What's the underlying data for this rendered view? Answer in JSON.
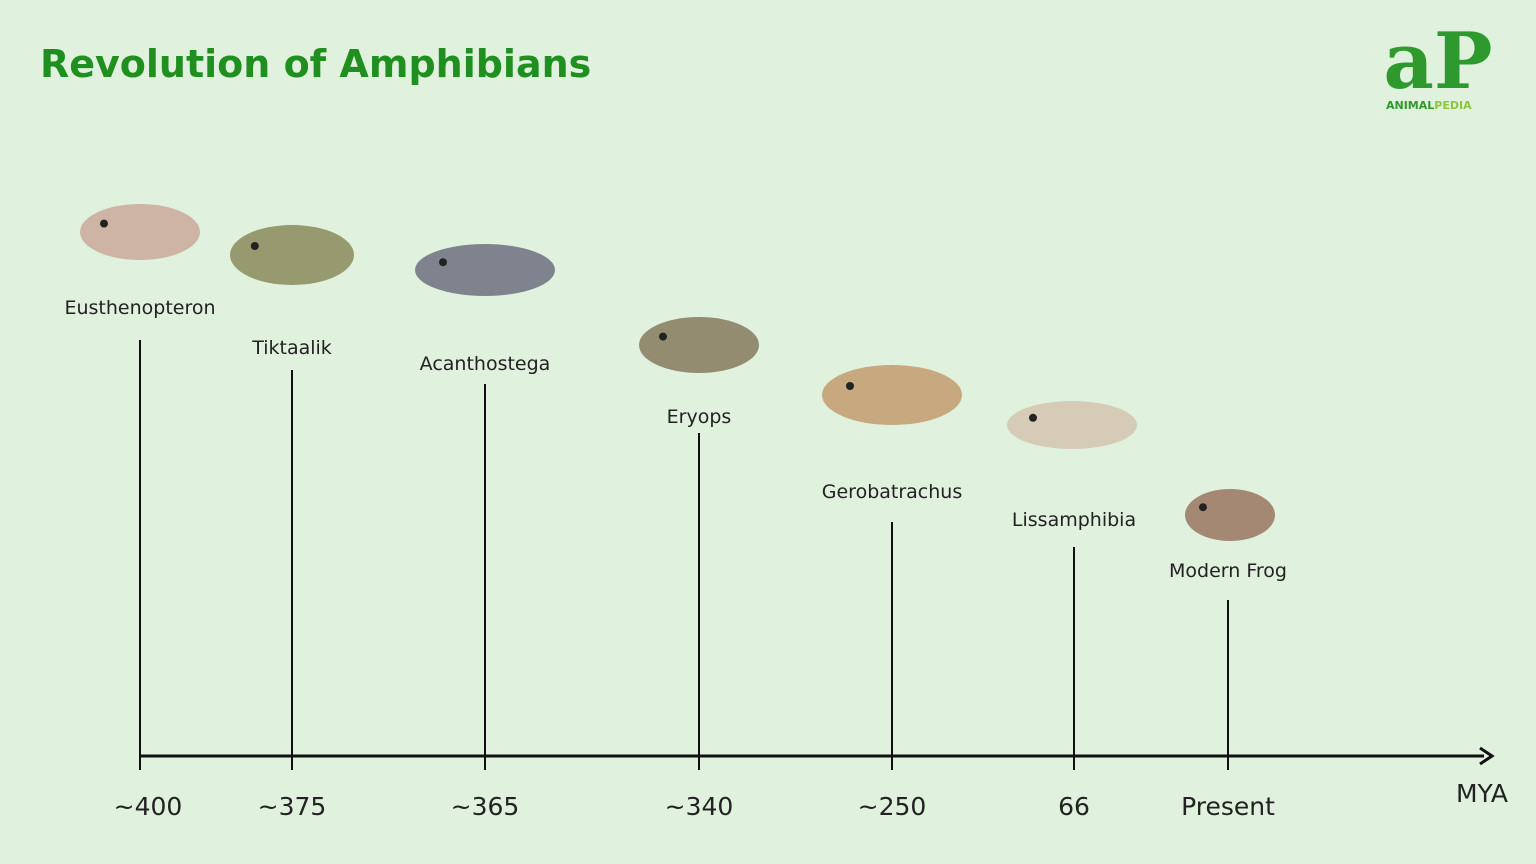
{
  "header": {
    "title": "Revolution of Amphibians",
    "logo": {
      "mark": "aP",
      "brand_a": "ANIMAL",
      "brand_b": "PEDIA"
    }
  },
  "timeline": {
    "unit": "MYA",
    "events": [
      {
        "name": "Eusthenopteron",
        "time": "~400"
      },
      {
        "name": "Tiktaalik",
        "time": "~375"
      },
      {
        "name": "Acanthostega",
        "time": "~365"
      },
      {
        "name": "Eryops",
        "time": "~340"
      },
      {
        "name": "Gerobatrachus",
        "time": "~250"
      },
      {
        "name": "Lissamphibia",
        "time": "66"
      },
      {
        "name": "Modern Frog",
        "time": "Present"
      }
    ]
  }
}
